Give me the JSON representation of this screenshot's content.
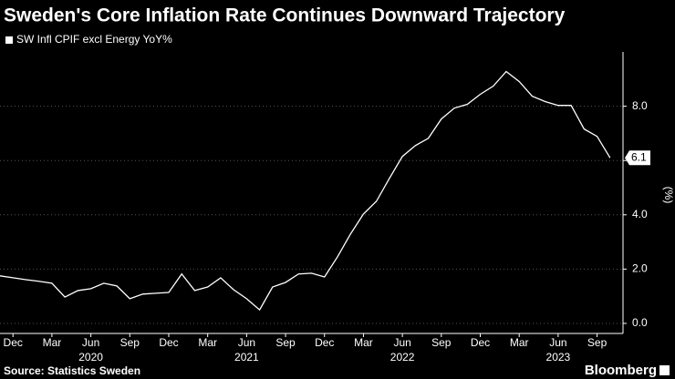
{
  "chart_data": {
    "type": "line",
    "title": "Sweden's Core Inflation Rate Continues Downward Trajectory",
    "y_axis_label": "(%)",
    "source": "Source: Statistics Sweden",
    "brand": "Bloomberg",
    "x": [
      "2019-11",
      "2019-12",
      "2020-01",
      "2020-02",
      "2020-03",
      "2020-04",
      "2020-05",
      "2020-06",
      "2020-07",
      "2020-08",
      "2020-09",
      "2020-10",
      "2020-11",
      "2020-12",
      "2021-01",
      "2021-02",
      "2021-03",
      "2021-04",
      "2021-05",
      "2021-06",
      "2021-07",
      "2021-08",
      "2021-09",
      "2021-10",
      "2021-11",
      "2021-12",
      "2022-01",
      "2022-02",
      "2022-03",
      "2022-04",
      "2022-05",
      "2022-06",
      "2022-07",
      "2022-08",
      "2022-09",
      "2022-10",
      "2022-11",
      "2022-12",
      "2023-01",
      "2023-02",
      "2023-03",
      "2023-04",
      "2023-05",
      "2023-06",
      "2023-07",
      "2023-08",
      "2023-09",
      "2023-10"
    ],
    "series": [
      {
        "name": "SW Infl CPIF excl Energy YoY%",
        "color": "#ffffff",
        "values": [
          1.75,
          1.68,
          1.61,
          1.55,
          1.48,
          0.97,
          1.21,
          1.28,
          1.48,
          1.38,
          0.91,
          1.08,
          1.11,
          1.14,
          1.82,
          1.21,
          1.34,
          1.68,
          1.24,
          0.91,
          0.5,
          1.34,
          1.51,
          1.82,
          1.85,
          1.71,
          2.45,
          3.29,
          4.03,
          4.5,
          5.34,
          6.15,
          6.55,
          6.82,
          7.53,
          7.93,
          8.07,
          8.44,
          8.74,
          9.28,
          8.91,
          8.37,
          8.17,
          8.03,
          8.03,
          7.16,
          6.89,
          6.1
        ]
      }
    ],
    "ylim": [
      -0.37,
      10.0
    ],
    "yticks": [
      {
        "value": 0,
        "label": "0.0"
      },
      {
        "value": 2,
        "label": "2.0"
      },
      {
        "value": 4,
        "label": "4.0"
      },
      {
        "value": 6,
        "label": "6.0"
      },
      {
        "value": 8,
        "label": "8.0"
      }
    ],
    "xticks": [
      {
        "value": "2019-12",
        "label": "Dec"
      },
      {
        "value": "2020-03",
        "label": "Mar"
      },
      {
        "value": "2020-06",
        "label": "Jun"
      },
      {
        "value": "2020-09",
        "label": "Sep"
      },
      {
        "value": "2020-12",
        "label": "Dec"
      },
      {
        "value": "2021-03",
        "label": "Mar"
      },
      {
        "value": "2021-06",
        "label": "Jun"
      },
      {
        "value": "2021-09",
        "label": "Sep"
      },
      {
        "value": "2021-12",
        "label": "Dec"
      },
      {
        "value": "2022-03",
        "label": "Mar"
      },
      {
        "value": "2022-06",
        "label": "Jun"
      },
      {
        "value": "2022-09",
        "label": "Sep"
      },
      {
        "value": "2022-12",
        "label": "Dec"
      },
      {
        "value": "2023-03",
        "label": "Mar"
      },
      {
        "value": "2023-06",
        "label": "Jun"
      },
      {
        "value": "2023-09",
        "label": "Sep"
      }
    ],
    "xgroups": [
      {
        "value": "2020-06",
        "label": "2020"
      },
      {
        "value": "2021-06",
        "label": "2021"
      },
      {
        "value": "2022-06",
        "label": "2022"
      },
      {
        "value": "2023-06",
        "label": "2023"
      }
    ],
    "grid": true
  }
}
